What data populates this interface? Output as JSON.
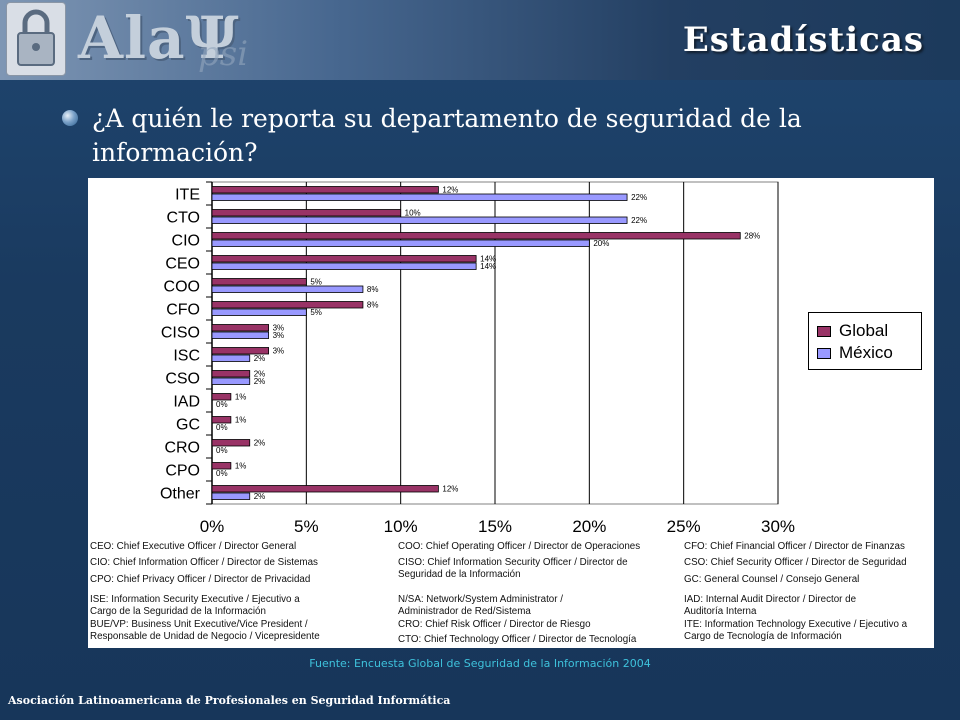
{
  "header": {
    "logo_text": "AlaΨ",
    "logo_suffix": "psi",
    "title": "Estadísticas"
  },
  "question": "¿A quién le reporta su departamento de seguridad de la información?",
  "chart_data": {
    "type": "bar",
    "orientation": "horizontal",
    "categories": [
      "ITE",
      "CTO",
      "CIO",
      "CEO",
      "COO",
      "CFO",
      "CISO",
      "ISC",
      "CSO",
      "IAD",
      "GC",
      "CRO",
      "CPO",
      "Other"
    ],
    "series": [
      {
        "name": "Global",
        "color": "#993366",
        "values": [
          12,
          10,
          28,
          14,
          5,
          8,
          3,
          3,
          2,
          1,
          1,
          2,
          1,
          12
        ]
      },
      {
        "name": "México",
        "color": "#9999ff",
        "values": [
          22,
          22,
          20,
          14,
          8,
          5,
          3,
          2,
          2,
          0,
          0,
          0,
          0,
          2
        ]
      }
    ],
    "x_ticks": [
      "0%",
      "5%",
      "10%",
      "15%",
      "20%",
      "25%",
      "30%"
    ],
    "xlim": [
      0,
      30
    ],
    "value_suffix": "%",
    "grid": "vertical",
    "legend": "right"
  },
  "glossary": [
    {
      "col": 0,
      "row": 0,
      "text": "CEO: Chief Executive Officer / Director General"
    },
    {
      "col": 0,
      "row": 1,
      "text": "CIO: Chief Information Officer / Director de Sistemas"
    },
    {
      "col": 0,
      "row": 2,
      "text": "CPO: Chief Privacy Officer / Director de Privacidad"
    },
    {
      "col": 0,
      "row": 3,
      "text": "ISE: Information Security Executive / Ejecutivo a\nCargo de la Seguridad de la Información"
    },
    {
      "col": 0,
      "row": 4,
      "text": "BUE/VP: Business Unit Executive/Vice President /\nResponsable de Unidad de Negocio / Vicepresidente"
    },
    {
      "col": 1,
      "row": 0,
      "text": "COO: Chief Operating Officer / Director de Operaciones"
    },
    {
      "col": 1,
      "row": 1,
      "text": "CISO: Chief Information Security Officer / Director de\nSeguridad de la Información"
    },
    {
      "col": 1,
      "row": 3,
      "text": "N/SA: Network/System Administrator /\nAdministrador de Red/Sistema"
    },
    {
      "col": 1,
      "row": 4,
      "text": "CRO: Chief Risk Officer / Director de Riesgo"
    },
    {
      "col": 1,
      "row": 5,
      "text": "CTO: Chief Technology Officer / Director de Tecnología"
    },
    {
      "col": 2,
      "row": 0,
      "text": "CFO: Chief Financial Officer / Director de Finanzas"
    },
    {
      "col": 2,
      "row": 1,
      "text": "CSO: Chief Security Officer / Director de Seguridad"
    },
    {
      "col": 2,
      "row": 2,
      "text": "GC: General Counsel / Consejo General"
    },
    {
      "col": 2,
      "row": 3,
      "text": "IAD: Internal Audit Director / Director de\nAuditoría Interna"
    },
    {
      "col": 2,
      "row": 4,
      "text": "ITE: Information Technology Executive / Ejecutivo a\nCargo de Tecnología de Información"
    }
  ],
  "source": "Fuente: Encuesta Global de Seguridad de la Información 2004",
  "footer": "Asociación Latinoamericana de Profesionales en Seguridad Informática"
}
